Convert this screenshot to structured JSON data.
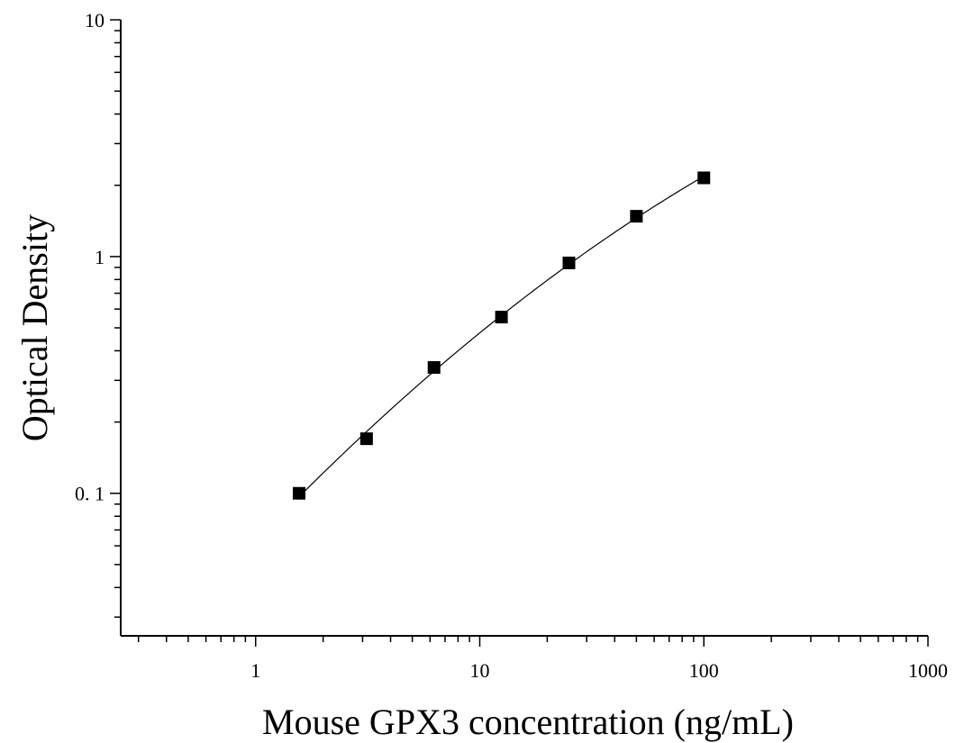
{
  "chart_data": {
    "type": "scatter",
    "title": "",
    "xlabel": "Mouse GPX3 concentration (ng/mL)",
    "ylabel": "Optical Density",
    "xscale": "log",
    "yscale": "log",
    "xlim": [
      0.25,
      1000
    ],
    "ylim": [
      0.025,
      10
    ],
    "xticks": [
      1,
      10,
      100,
      1000
    ],
    "xtick_labels": [
      "1",
      "10",
      "100",
      "1000"
    ],
    "yticks": [
      0.1,
      1,
      10
    ],
    "ytick_labels": [
      "0. 1",
      "1",
      "10"
    ],
    "grid": false,
    "legend": "none",
    "marker": "square",
    "fit_curve": true,
    "colors": {
      "marker": "#000000",
      "curve": "#000000",
      "axis": "#000000"
    },
    "series": [
      {
        "x": [
          1.5625,
          3.125,
          6.25,
          12.5,
          25,
          50,
          100
        ],
        "y": [
          0.1,
          0.17,
          0.34,
          0.555,
          0.94,
          1.48,
          2.15
        ]
      }
    ]
  }
}
